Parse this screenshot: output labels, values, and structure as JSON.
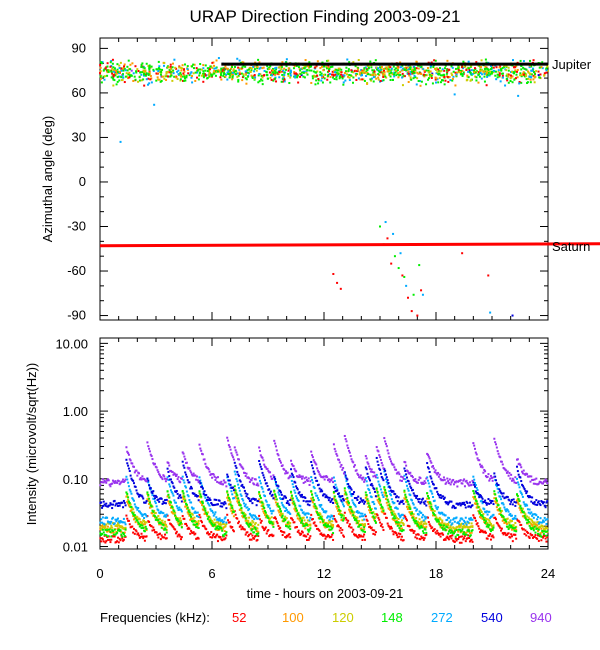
{
  "chart_data": [
    {
      "type": "scatter",
      "title": "URAP Direction Finding  2003-09-21",
      "ylabel": "Azimuthal angle (deg)",
      "xlim": [
        0,
        24
      ],
      "ylim": [
        -93,
        97
      ],
      "yticks": [
        90,
        60,
        30,
        0,
        -30,
        -60,
        -90
      ],
      "reference_lines": [
        {
          "name": "Jupiter",
          "value": 74,
          "color": "#000000"
        },
        {
          "name": "Saturn",
          "value": -43,
          "color": "#ff0000"
        }
      ],
      "series": [
        {
          "name": "52",
          "color": "#ff0000",
          "points": [
            [
              0.6,
              75
            ],
            [
              1.2,
              72
            ],
            [
              1.9,
              78
            ],
            [
              3.1,
              73
            ],
            [
              4.5,
              76
            ],
            [
              6.0,
              71
            ],
            [
              7.4,
              77
            ],
            [
              8.8,
              72
            ],
            [
              10.1,
              75
            ],
            [
              11.6,
              78
            ],
            [
              12.5,
              -62
            ],
            [
              12.7,
              -68
            ],
            [
              12.9,
              -72
            ],
            [
              14.3,
              76
            ],
            [
              15.9,
              80
            ],
            [
              15.4,
              -38
            ],
            [
              15.6,
              -55
            ],
            [
              16.2,
              -63
            ],
            [
              16.5,
              -78
            ],
            [
              16.7,
              -87
            ],
            [
              17.0,
              -90
            ],
            [
              17.2,
              -73
            ],
            [
              17.9,
              82
            ],
            [
              18.6,
              76
            ],
            [
              19.4,
              -48
            ],
            [
              20.3,
              74
            ],
            [
              20.8,
              -63
            ],
            [
              22.0,
              79
            ],
            [
              23.3,
              73
            ]
          ]
        },
        {
          "name": "100",
          "color": "#ff9900",
          "points": [
            [
              0.4,
              74
            ],
            [
              1.5,
              70
            ],
            [
              2.7,
              77
            ],
            [
              3.8,
              72
            ],
            [
              5.2,
              75
            ],
            [
              6.5,
              69
            ],
            [
              7.8,
              79
            ],
            [
              9.2,
              73
            ],
            [
              10.7,
              76
            ],
            [
              12.2,
              71
            ],
            [
              13.8,
              77
            ],
            [
              15.1,
              74
            ],
            [
              16.6,
              78
            ],
            [
              17.4,
              72
            ],
            [
              18.9,
              80
            ],
            [
              20.1,
              71
            ],
            [
              21.5,
              76
            ],
            [
              22.7,
              74
            ],
            [
              23.6,
              70
            ]
          ]
        },
        {
          "name": "120",
          "color": "#cccc00",
          "points": [
            [
              0.8,
              73
            ],
            [
              2.0,
              76
            ],
            [
              3.4,
              71
            ],
            [
              4.9,
              78
            ],
            [
              6.2,
              74
            ],
            [
              7.1,
              70
            ],
            [
              8.4,
              75
            ],
            [
              9.8,
              72
            ],
            [
              11.2,
              77
            ],
            [
              12.8,
              73
            ],
            [
              14.0,
              79
            ],
            [
              15.5,
              72
            ],
            [
              16.9,
              75
            ],
            [
              18.2,
              70
            ],
            [
              19.7,
              77
            ],
            [
              21.0,
              73
            ],
            [
              22.3,
              78
            ],
            [
              23.8,
              72
            ]
          ]
        },
        {
          "name": "148",
          "color": "#00ee00",
          "points": [
            [
              0.2,
              75
            ],
            [
              1.0,
              71
            ],
            [
              2.3,
              74
            ],
            [
              3.6,
              77
            ],
            [
              4.8,
              72
            ],
            [
              6.3,
              75
            ],
            [
              7.6,
              73
            ],
            [
              9.0,
              76
            ],
            [
              10.4,
              71
            ],
            [
              11.8,
              74
            ],
            [
              13.2,
              77
            ],
            [
              14.6,
              72
            ],
            [
              15.0,
              -30
            ],
            [
              15.2,
              -42
            ],
            [
              15.8,
              -50
            ],
            [
              16.0,
              -58
            ],
            [
              16.3,
              -64
            ],
            [
              16.8,
              -76
            ],
            [
              17.1,
              -56
            ],
            [
              17.6,
              75
            ],
            [
              18.4,
              72
            ],
            [
              19.2,
              78
            ],
            [
              20.6,
              73
            ],
            [
              21.9,
              75
            ],
            [
              23.0,
              71
            ],
            [
              23.9,
              76
            ]
          ]
        },
        {
          "name": "272",
          "color": "#00aaff",
          "points": [
            [
              0.3,
              76
            ],
            [
              1.1,
              27
            ],
            [
              2.9,
              52
            ],
            [
              4.2,
              75
            ],
            [
              5.7,
              72
            ],
            [
              7.0,
              74
            ],
            [
              8.6,
              77
            ],
            [
              10.2,
              73
            ],
            [
              11.9,
              70
            ],
            [
              13.5,
              75
            ],
            [
              15.3,
              -27
            ],
            [
              15.7,
              -35
            ],
            [
              16.1,
              -48
            ],
            [
              16.4,
              -70
            ],
            [
              17.3,
              -76
            ],
            [
              18.0,
              67
            ],
            [
              19.0,
              59
            ],
            [
              20.9,
              -88
            ],
            [
              21.7,
              65
            ],
            [
              22.4,
              58
            ],
            [
              23.1,
              75
            ]
          ]
        },
        {
          "name": "540",
          "color": "#0000dd",
          "points": [
            [
              0.9,
              74
            ],
            [
              3.3,
              71
            ],
            [
              6.7,
              76
            ],
            [
              10.8,
              72
            ],
            [
              14.8,
              77
            ],
            [
              17.8,
              73
            ],
            [
              19.8,
              75
            ],
            [
              22.1,
              -90
            ],
            [
              23.5,
              72
            ]
          ]
        },
        {
          "name": "940",
          "color": "#9933ee",
          "points": [
            [
              1.7,
              75
            ],
            [
              5.9,
              73
            ],
            [
              9.6,
              77
            ],
            [
              13.0,
              72
            ],
            [
              16.4,
              75
            ],
            [
              19.3,
              74
            ],
            [
              22.8,
              76
            ]
          ]
        }
      ]
    },
    {
      "type": "line",
      "ylabel": "Intensity (microvolt/sqrt(Hz))",
      "xlabel": "time - hours on 2003-09-21",
      "xlim": [
        0,
        24
      ],
      "xticks": [
        0,
        6,
        12,
        18,
        24
      ],
      "yscale": "log",
      "ylim": [
        0.0092,
        12
      ],
      "yticks": [
        "10.00",
        "1.00",
        "0.10",
        "0.01"
      ],
      "ytick_values": [
        10,
        1,
        0.1,
        0.01
      ],
      "burst_times": [
        1.4,
        2.5,
        3.6,
        4.4,
        5.3,
        6.8,
        7.2,
        8.5,
        9.3,
        10.2,
        11.3,
        12.5,
        13.1,
        14.2,
        14.8,
        15.2,
        16.3,
        17.5,
        20.0,
        21.1,
        22.3
      ],
      "series": [
        {
          "name": "52",
          "color": "#ff0000",
          "baseline": 0.013
        },
        {
          "name": "100",
          "color": "#ff9900",
          "baseline": 0.018
        },
        {
          "name": "120",
          "color": "#cccc00",
          "baseline": 0.02
        },
        {
          "name": "148",
          "color": "#00ee00",
          "baseline": 0.016
        },
        {
          "name": "272",
          "color": "#00aaff",
          "baseline": 0.024
        },
        {
          "name": "540",
          "color": "#0000dd",
          "baseline": 0.042
        },
        {
          "name": "940",
          "color": "#9933ee",
          "baseline": 0.088
        }
      ]
    }
  ],
  "legend": {
    "label": "Frequencies (kHz):",
    "items": [
      {
        "text": "52",
        "color": "#ff0000"
      },
      {
        "text": "100",
        "color": "#ff9900"
      },
      {
        "text": "120",
        "color": "#cccc00"
      },
      {
        "text": "148",
        "color": "#00ee00"
      },
      {
        "text": "272",
        "color": "#00aaff"
      },
      {
        "text": "540",
        "color": "#0000dd"
      },
      {
        "text": "940",
        "color": "#9933ee"
      }
    ]
  }
}
